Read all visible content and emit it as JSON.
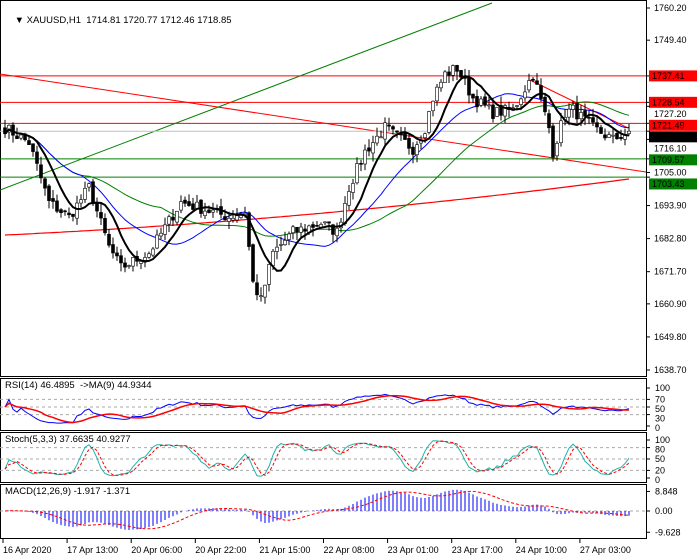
{
  "header": {
    "symbol": "XAUUSD,H1",
    "ohlc": "1714.81 1720.77 1712.46 1718.85"
  },
  "price_axis": {
    "ticks": [
      "1760.20",
      "1749.40",
      "1727.20",
      "1716.10",
      "1705.00",
      "1693.90",
      "1682.80",
      "1671.70",
      "1660.90",
      "1649.80",
      "1638.70"
    ]
  },
  "price_labels": [
    {
      "value": "1737.41",
      "price": 1737.41,
      "color": "#ff0000"
    },
    {
      "value": "1728.54",
      "price": 1728.54,
      "color": "#ff0000"
    },
    {
      "value": "1721.49",
      "price": 1721.49,
      "color": "#ff0000"
    },
    {
      "value": "1718.85",
      "price": 1718.85,
      "color": "#000000"
    },
    {
      "value": "1709.57",
      "price": 1709.57,
      "color": "#008000"
    },
    {
      "value": "1703.43",
      "price": 1703.43,
      "color": "#008000"
    }
  ],
  "rsi": {
    "label": "RSI(14) 46.4895  ->MA(9) 44.9344",
    "ticks": [
      "100",
      "70",
      "50",
      "30",
      "0"
    ]
  },
  "stoch": {
    "label": "Stoch(5,3,3) 37.6635 40.9277",
    "ticks": [
      "100",
      "80",
      "50",
      "20",
      "0"
    ]
  },
  "macd": {
    "label": "MACD(12,26,9) -1.917 -1.371",
    "ticks": [
      "8.848",
      "0.00",
      "-9.628"
    ]
  },
  "time_axis": [
    "16 Apr 2020",
    "17 Apr 13:00",
    "20 Apr 06:00",
    "20 Apr 22:00",
    "21 Apr 15:00",
    "22 Apr 08:00",
    "23 Apr 01:00",
    "23 Apr 17:00",
    "24 Apr 10:00",
    "27 Apr 03:00"
  ],
  "chart_data": {
    "type": "candlestick",
    "symbol": "XAUUSD",
    "timeframe": "H1",
    "ylim": [
      1638.7,
      1760.2
    ],
    "price_path": [
      [
        0,
        1720
      ],
      [
        6,
        1715
      ],
      [
        11,
        1695
      ],
      [
        16,
        1690
      ],
      [
        21,
        1700
      ],
      [
        26,
        1680
      ],
      [
        29,
        1673
      ],
      [
        36,
        1678
      ],
      [
        44,
        1695
      ],
      [
        49,
        1693
      ],
      [
        56,
        1690
      ],
      [
        60,
        1692
      ],
      [
        62,
        1668
      ],
      [
        64,
        1662
      ],
      [
        67,
        1678
      ],
      [
        72,
        1685
      ],
      [
        79,
        1688
      ],
      [
        83,
        1685
      ],
      [
        86,
        1700
      ],
      [
        90,
        1712
      ],
      [
        95,
        1720
      ],
      [
        100,
        1715
      ],
      [
        102,
        1713
      ],
      [
        105,
        1720
      ],
      [
        107,
        1730
      ],
      [
        110,
        1738
      ],
      [
        113,
        1740
      ],
      [
        117,
        1730
      ],
      [
        122,
        1725
      ],
      [
        127,
        1726
      ],
      [
        132,
        1738
      ],
      [
        136,
        1720
      ],
      [
        137,
        1712
      ],
      [
        140,
        1725
      ],
      [
        142,
        1726
      ],
      [
        147,
        1720
      ],
      [
        152,
        1716
      ],
      [
        156,
        1718.85
      ]
    ],
    "colors": {
      "ma_fast": "#000000",
      "ma_mid": "#0000ff",
      "ma_slow": "#008000",
      "ma_long": "#ff0000",
      "rsi": "#0000ff",
      "signal": "#ff0000",
      "stoch_main": "#20b2aa"
    }
  }
}
